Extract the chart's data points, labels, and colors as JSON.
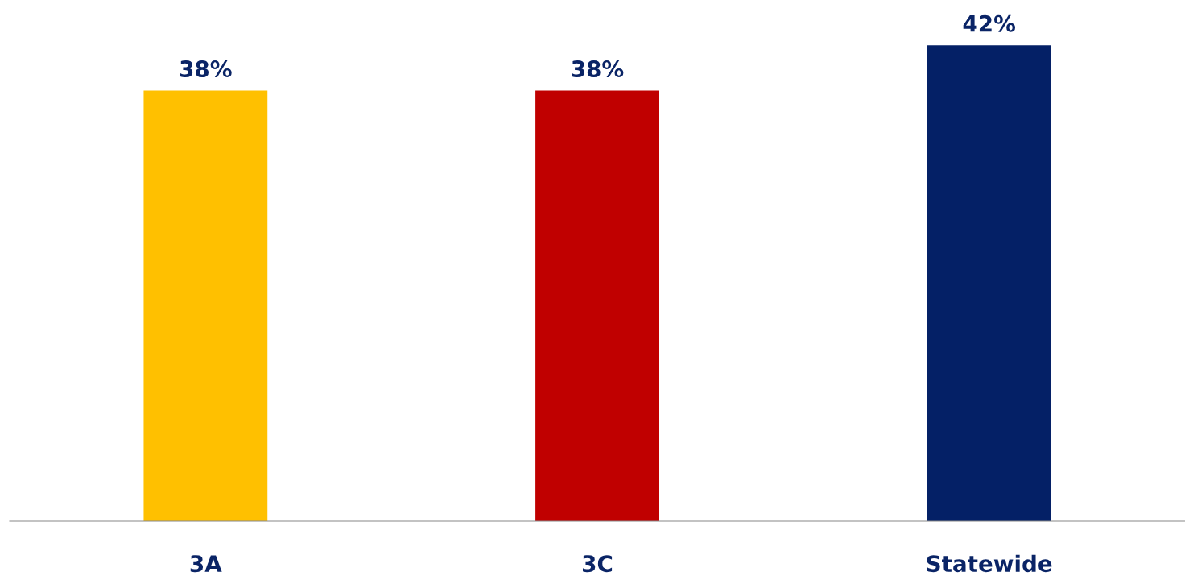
{
  "chart_data": {
    "type": "bar",
    "categories": [
      "3A",
      "3C",
      "Statewide"
    ],
    "values": [
      38,
      38,
      42
    ],
    "colors": [
      "#ffc000",
      "#c00000",
      "#042066"
    ],
    "value_labels": [
      "38%",
      "38%",
      "42%"
    ],
    "tick_labels": "x",
    "grid": false,
    "legend": false
  }
}
